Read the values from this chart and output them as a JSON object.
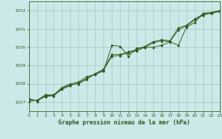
{
  "title": "Graphe pression niveau de la mer (hPa)",
  "bg_color": "#cce8e8",
  "grid_color": "#99ccbb",
  "line_color": "#2d5a1b",
  "x_min": 0,
  "x_max": 23,
  "y_min": 1026.5,
  "y_max": 1032.5,
  "yticks": [
    1027,
    1028,
    1029,
    1030,
    1031,
    1032
  ],
  "xticks": [
    0,
    1,
    2,
    3,
    4,
    5,
    6,
    7,
    8,
    9,
    10,
    11,
    12,
    13,
    14,
    15,
    16,
    17,
    18,
    19,
    20,
    21,
    22,
    23
  ],
  "series1_y": [
    1027.1,
    1027.1,
    1027.4,
    1027.4,
    1027.8,
    1028.0,
    1028.1,
    1028.4,
    1028.5,
    1028.7,
    1030.1,
    1030.05,
    1029.5,
    1029.95,
    1030.0,
    1030.0,
    1030.1,
    1030.3,
    1030.1,
    1031.1,
    1031.35,
    1031.85,
    1031.9,
    1031.95
  ],
  "series2_y": [
    1027.2,
    1027.05,
    1027.35,
    1027.35,
    1027.75,
    1027.95,
    1028.0,
    1028.25,
    1028.55,
    1028.8,
    1029.6,
    1029.6,
    1029.75,
    1029.85,
    1030.05,
    1030.3,
    1030.4,
    1030.35,
    1031.05,
    1031.2,
    1031.55,
    1031.8,
    1031.9,
    1032.0
  ],
  "series3_y": [
    1027.05,
    1027.1,
    1027.3,
    1027.35,
    1027.7,
    1027.9,
    1028.05,
    1028.3,
    1028.55,
    1028.75,
    1029.5,
    1029.55,
    1029.7,
    1029.8,
    1030.0,
    1030.25,
    1030.35,
    1030.3,
    1030.95,
    1031.15,
    1031.5,
    1031.75,
    1031.85,
    1031.95
  ]
}
